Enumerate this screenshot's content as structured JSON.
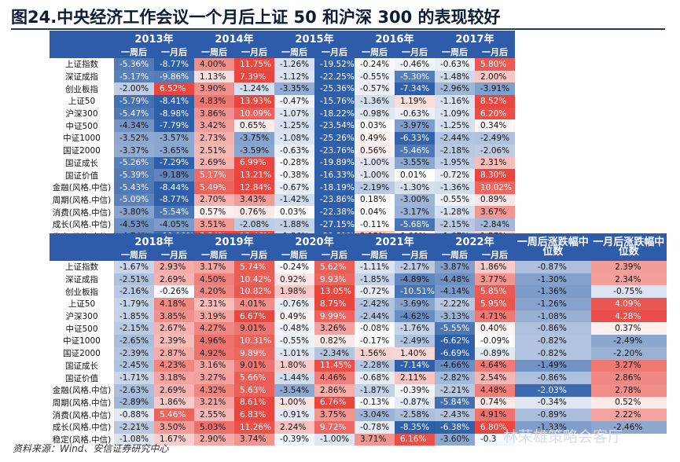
{
  "title": "图24.中央经济工作会议一个月后上证 50 和沪深 300 的表现较好",
  "source_note": "资料来源：Wind、安信证券研究中心",
  "watermark": "林荣雄策略会客厅",
  "sub_headers": [
    "一周后",
    "一月后"
  ],
  "median_headers": [
    "一周后涨跌幅中位数",
    "一月后涨跌幅中位数"
  ],
  "row_labels": [
    "上证指数",
    "深证成指",
    "创业板指",
    "上证50",
    "沪深300",
    "中证500",
    "中证1000",
    "国证2000",
    "国证成长",
    "国证价值",
    "金融(风格.中信)",
    "周期(风格.中信)",
    "消费(风格.中信)",
    "成长(风格.中信)",
    "稳定(风格.中信)"
  ],
  "colors": {
    "header_bg": "#2f5bab",
    "positive": "#e8463f",
    "negative": "#2e5fa8"
  },
  "top_table": {
    "years": [
      "2013年",
      "2014年",
      "2015年",
      "2016年",
      "2017年"
    ],
    "rows": [
      [
        "-5.36%",
        "-8.77%",
        "4.00%",
        "11.75%",
        "-1.26%",
        "-19.52%",
        "-0.24%",
        "-0.46%",
        "-0.63%",
        "5.80%"
      ],
      [
        "-5.17%",
        "-9.86%",
        "1.13%",
        "7.39%",
        "-1.12%",
        "-22.25%",
        "-0.55%",
        "-5.30%",
        "-1.48%",
        "2.00%"
      ],
      [
        "-2.00%",
        "6.52%",
        "3.90%",
        "-1.24%",
        "-3.35%",
        "-25.36%",
        "-0.57%",
        "-7.34%",
        "-2.96%",
        "-3.91%"
      ],
      [
        "-5.79%",
        "-8.41%",
        "4.83%",
        "13.93%",
        "-0.47%",
        "-15.76%",
        "-1.36%",
        "1.19%",
        "-1.16%",
        "8.52%"
      ],
      [
        "-5.47%",
        "-8.98%",
        "3.86%",
        "10.09%",
        "-1.07%",
        "-18.22%",
        "-0.98%",
        "-0.63%",
        "-1.09%",
        "6.20%"
      ],
      [
        "-4.34%",
        "-7.79%",
        "3.42%",
        "0.65%",
        "-1.25%",
        "-23.54%",
        "0.03%",
        "-3.97%",
        "-1.25%",
        "0.34%"
      ],
      [
        "-3.52%",
        "-3.57%",
        "2.73%",
        "-3.75%",
        "-1.08%",
        "-25.26%",
        "0.49%",
        "-6.33%",
        "-2.44%",
        "-2.49%"
      ],
      [
        "-3.37%",
        "-3.65%",
        "2.51%",
        "-3.59%",
        "-0.63%",
        "-23.76%",
        "0.56%",
        "-5.46%",
        "-2.18%",
        "-2.06%"
      ],
      [
        "-5.26%",
        "-7.29%",
        "2.69%",
        "6.99%",
        "-0.28%",
        "-19.89%",
        "-1.00%",
        "-3.55%",
        "-1.95%",
        "2.31%"
      ],
      [
        "-5.39%",
        "-9.18%",
        "5.17%",
        "13.21%",
        "-0.38%",
        "-16.33%",
        "-1.00%",
        "0.01%",
        "-0.72%",
        "8.30%"
      ],
      [
        "-5.43%",
        "-8.44%",
        "5.49%",
        "12.84%",
        "-0.67%",
        "-18.19%",
        "-2.19%",
        "-1.30%",
        "-1.36%",
        "10.02%"
      ],
      [
        "-5.09%",
        "-8.77%",
        "2.70%",
        "3.43%",
        "-1.42%",
        "-23.86%",
        "0.18%",
        "-3.00%",
        "-0.55%",
        "0.89%"
      ],
      [
        "-3.80%",
        "-5.54%",
        "0.57%",
        "0.76%",
        "0.03%",
        "-22.38%",
        "0.04%",
        "-3.17%",
        "-1.28%",
        "3.67%"
      ],
      [
        "-4.53%",
        "-4.05%",
        "3.51%",
        "-2.08%",
        "-1.88%",
        "-27.15%",
        "-0.11%",
        "-5.68%",
        "-2.15%",
        "-2.84%"
      ],
      [
        "-4.74%",
        "-11.10%",
        "8.84%",
        "12.46%",
        "-1.56%",
        "-21.81%",
        "2.12%",
        "0.60%",
        "-1.67%",
        "1.57%"
      ]
    ]
  },
  "bottom_table": {
    "years": [
      "2018年",
      "2019年",
      "2020年",
      "2021年",
      "2022年"
    ],
    "rows": [
      [
        "-1.67%",
        "2.93%",
        "3.17%",
        "5.74%",
        "-0.24%",
        "5.62%",
        "-1.11%",
        "-2.17%",
        "-3.87%",
        "1.86%",
        "-0.87%",
        "2.39%"
      ],
      [
        "-2.51%",
        "2.69%",
        "4.50%",
        "10.42%",
        "0.92%",
        "9.93%",
        "-1.85%",
        "-4.89%",
        "-4.48%",
        "3.77%",
        "-1.30%",
        "2.34%"
      ],
      [
        "-2.16%",
        "-0.26%",
        "4.20%",
        "10.82%",
        "1.98%",
        "13.05%",
        "-0.72%",
        "-10.51%",
        "-4.14%",
        "5.85%",
        "-1.36%",
        "-0.75%"
      ],
      [
        "-1.79%",
        "4.18%",
        "2.31%",
        "4.01%",
        "-0.76%",
        "8.75%",
        "-2.42%",
        "-3.69%",
        "-2.22%",
        "5.95%",
        "-1.26%",
        "4.09%"
      ],
      [
        "-1.85%",
        "3.85%",
        "3.19%",
        "6.67%",
        "0.49%",
        "9.99%",
        "-2.44%",
        "-4.62%",
        "-3.13%",
        "4.71%",
        "-1.08%",
        "4.28%"
      ],
      [
        "-2.15%",
        "2.67%",
        "4.27%",
        "9.01%",
        "-0.48%",
        "3.26%",
        "-0.08%",
        "-1.76%",
        "-5.55%",
        "0.40%",
        "-0.86%",
        "0.37%"
      ],
      [
        "-2.65%",
        "2.39%",
        "4.96%",
        "10.31%",
        "-0.55%",
        "0.82%",
        "-0.17%",
        "-2.49%",
        "-6.62%",
        "-0.09%",
        "-0.82%",
        "-2.49%"
      ],
      [
        "-2.39%",
        "2.87%",
        "4.92%",
        "9.89%",
        "-1.01%",
        "-2.34%",
        "1.56%",
        "1.40%",
        "-6.69%",
        "-0.89%",
        "-0.82%",
        "-2.20%"
      ],
      [
        "-2.45%",
        "4.23%",
        "3.16%",
        "9.01%",
        "1.80%",
        "11.45%",
        "-2.28%",
        "-7.14%",
        "-4.66%",
        "4.64%",
        "-1.49%",
        "3.27%"
      ],
      [
        "-1.71%",
        "3.18%",
        "3.27%",
        "5.66%",
        "-1.44%",
        "4.46%",
        "-0.68%",
        "2.11%",
        "-2.82%",
        "2.54%",
        "-0.86%",
        "2.86%"
      ],
      [
        "-2.63%",
        "2.69%",
        "4.32%",
        "5.63%",
        "-3.54%",
        "2.86%",
        "-1.87%",
        "-0.39%",
        "-2.21%",
        "4.48%",
        "-2.03%",
        "2.78%"
      ],
      [
        "-2.89%",
        "1.86%",
        "3.21%",
        "8.61%",
        "1.00%",
        "6.76%",
        "-0.13%",
        "-0.87%",
        "-5.84%",
        "0.74%",
        "-0.34%",
        "0.52%"
      ],
      [
        "-0.88%",
        "5.46%",
        "2.55%",
        "6.83%",
        "-0.91%",
        "3.75%",
        "-3.04%",
        "-2.58%",
        "-2.43%",
        "4.91%",
        "-0.89%",
        "2.22%"
      ],
      [
        "-2.21%",
        "3.50%",
        "5.03%",
        "11.26%",
        "2.24%",
        "9.72%",
        "-0.78%",
        "-8.35%",
        "-6.38%",
        "6.80%",
        "-1.33%",
        "-2.46%"
      ],
      [
        "-1.08%",
        "1.67%",
        "2.90%",
        "3.74%",
        "-0.39%",
        "-1.00%",
        "3.71%",
        "6.16%",
        "-3.60%",
        "-0.3",
        "",
        ""
      ]
    ]
  }
}
